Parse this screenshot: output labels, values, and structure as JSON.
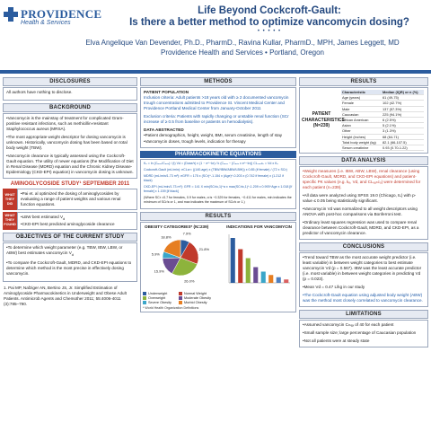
{
  "header": {
    "logo_name": "PROVIDENCE",
    "logo_sub": "Health & Services",
    "title_line1": "Life Beyond Cockcroft-Gault:",
    "title_line2": "Is there a better method to optimize vancomycin dosing?",
    "dots": "• • • • •",
    "authors": "Elva Angelique Van Devender, Ph.D., PharmD., Ravina Kullar, PharmD., MPH, James Leggett, MD",
    "affiliation": "Providence Health and Services • Portland, Oregon"
  },
  "disclosures": {
    "title": "DISCLOSURES",
    "text": "All authors have nothing to disclose."
  },
  "background": {
    "title": "BACKGROUND",
    "p1": "•Vancomycin is the mainstay of treatment for complicated Gram-positive resistant infections, such as methicillin-resistant Staphylococcus aureus (MRSA).",
    "p2": "•The most appropriate weight descriptor for dosing vancomycin is unknown. Historically, vancomycin dosing has been based on total body weight (TBW).",
    "p3": "•Vancomycin clearance is typically assessed using the Cockcroft-Gault equation. The utility of newer equations (the Modification of Diet in Renal Disease (MDRD) equation and the Chronic Kidney Disease-Epidemiology (CKD-EPI) equation) in vancomycin dosing is unknown."
  },
  "study": {
    "title": "AMINOGLYCOSIDE STUDY¹ SEPTEMBER 2011",
    "tag1": "WHAT THEY DID",
    "text1": "•Pai et. al optimized the dosing of aminoglycosides by evaluating a range of patient weights and various renal function equations.",
    "tag2": "WHAT THEY FOUND",
    "text2a": "•LBW best estimated V",
    "text2b": "•CKD-EPI best predicted aminoglycoside clearance"
  },
  "objectives": {
    "title": "OBJECTIVES OF THE CURRENT STUDY",
    "p1": "•To determine which weight parameter (e.g. TBW, IBW, LBW, or ABW) best estimates vancomycin V",
    "p2": "•To compare the Cockcroft-Gault, MDRD, and CKD-EPI equations to determine which method is the most precise in effectively dosing vancomycin."
  },
  "reference": "1. Pai MP, Nafziger AN, Bertino JS, Jr. Simplified Estimation of Aminoglycoside Pharmacokinetics in Underweight and Obese Adult Patients. Antimicrob Agents and Chemother 2011; 55:4006-4011 (3):785–790.",
  "methods": {
    "title": "METHODS",
    "pop_title": "PATIENT POPULATION",
    "inclusion": "Inclusion criteria: Adult patients >18 years old with ≥ 2 documented vancomycin trough concentrations admitted to Providence St. Vincent Medical Center and Providence Portland Medical Center from January-October 2011",
    "exclusion": "Exclusion criteria: Patients with rapidly changing or unstable renal function (SCr increase of ≥ 0.5 from baseline or patients on hemodialysis).",
    "data_title": "DATA ABSTRACTED",
    "data1": "•Patient demographics, height, weight, BMI, serum creatinine, length of stay",
    "data2": "•Vancomycin doses, trough levels, indication for therapy"
  },
  "pk": {
    "title": "PHARMACOKINETIC EQUATIONS",
    "eq1": "Kₑ = ln (Cₘₐₓ/Cₘᵢₙ) / (t)    Vd = (Dose/τ) x (1 − e^−kτ) / k (Cₘₐₓ − (Cₘᵢₙ x e^−kτ))    CLᵥₐₙcₒ = Vd x Kₑ",
    "eq2": "Cockcroft-Gault (mL/min): eCLcr= ((140-age) x (TBW/IBW/ABW/LBW)) x 0.85 (if female) / (72 x SCr)",
    "eq3": "MDRD (mL/min/1.73 m²): eGFR = 175 x (SCr)^-1.154 x (Age)^-0.203 x (0.742 if female) x (1.212 if black)",
    "eq4": "CKD-EPI (mL/min/1.73 m²): GFR = 141 X min(SCr/κ,1)^α x max(SCr/κ,1)^-1.209 x 0.993^Age x 1.018 [if female] x 1.159 [if black]",
    "eq5": "(Where SCr =0.7 for females, 0.9 for males, α is −0.329 for females, −0.411 for males, min indicates the minimum of SCr/κ or 1, and max indicates the maximum of SCr/κ or 1.)"
  },
  "results": {
    "title": "RESULTS",
    "patient_label": "PATIENT CHARACTERISTICS (N=239)",
    "table_head": [
      "Characteristic",
      "Median (IQR) or n (%)"
    ],
    "table_rows": [
      [
        "Age (years)",
        "61 (49-75)"
      ],
      [
        "Female",
        "102 (42.7%)"
      ],
      [
        "Male",
        "137 (57.3%)"
      ],
      [
        "Caucasian",
        "225 (94.1%)"
      ],
      [
        "African American",
        "6 (2.5%)"
      ],
      [
        "Asian",
        "5 (2.1%)"
      ],
      [
        "Other",
        "3 (1.3%)"
      ],
      [
        "Height (inches)",
        "68 (64-71)"
      ],
      [
        "Total body weight (kg)",
        "82.1 (66-107.5)"
      ],
      [
        "Serum creatinine",
        "0.93 (0.70-1.22)"
      ]
    ],
    "chart_left_title": "OBESITY CATEGORIES* (N=239)",
    "chart_right_title": "INDICATIONS FOR VANCOMYCIN",
    "footnote": "* World Health Organization Definitions"
  },
  "chart_data": [
    {
      "type": "pie",
      "title": "OBESITY CATEGORIES* (N=239)",
      "labels": [
        "Underweight",
        "Normal Weight",
        "Overweight",
        "Moderate Obesity",
        "Severe Obesity",
        "Morbid Obesity"
      ],
      "values": [
        7.9,
        21.8,
        26.0,
        15.9,
        5.9,
        18.8
      ],
      "colors": [
        "#2b5c9e",
        "#c0392b",
        "#8db33c",
        "#6a4c93",
        "#3aa6c9",
        "#e67e22"
      ]
    },
    {
      "type": "bar",
      "title": "INDICATIONS FOR VANCOMYCIN",
      "categories": [
        "",
        "",
        "",
        "",
        "",
        "",
        "",
        ""
      ],
      "values": [
        40,
        30,
        22,
        14,
        10,
        7,
        5,
        3
      ]
    }
  ],
  "data_analysis": {
    "title": "DATA ANALYSIS",
    "p1": "•Weight measures (i.e. IBW, ABW, LBW), renal clearance (using Cockcroft-Gault, MDRD, and CKD-EPI equations) and patient-specific PK values (e.g. kₑ, Vd, and CLᵥₐₙcₒ) were determined for each patient (n=239).",
    "p2": "•All data were analyzed using SPSS 19.0 (Chicago, IL) with p-value ≤ 0.05 being statistically significant.",
    "p3": "•Vancomycin Vd was normalized to all weight descriptors using ANOVA with post-hoc comparisons via Bonferroni test.",
    "p4": "•Ordinary least squares regression was used to compare renal clearance between Cockcroft-Gault, MDRD, and CKD-EPI, as a predictor of vancomycin clearance."
  },
  "conclusions": {
    "title": "CONCLUSIONS",
    "p1": "•Trend toward TBW as the most accurate weight predictor (i.e. least variable) in between weight categories to best estimate vancomycin Vd (p = 0.567). IBW was the least accurate predictor (i.e. most variable) in between weight categories in predicting Vd (p = 0.023).",
    "p2": "•Mean Vd = 0.47 L/kg in our study",
    "p3": "•The Cockcroft-Gault equation using adjusted body weight (ABW) was the method most closely correlated to vancomycin clearance."
  },
  "limitations": {
    "title": "LIMITATIONS",
    "p1": "•Assumed vancomycin Cₘₐₓ of 40 for each patient",
    "p2": "•Small sample size; large percentage of Caucasian population",
    "p3": "•Not all patients were at steady state"
  }
}
